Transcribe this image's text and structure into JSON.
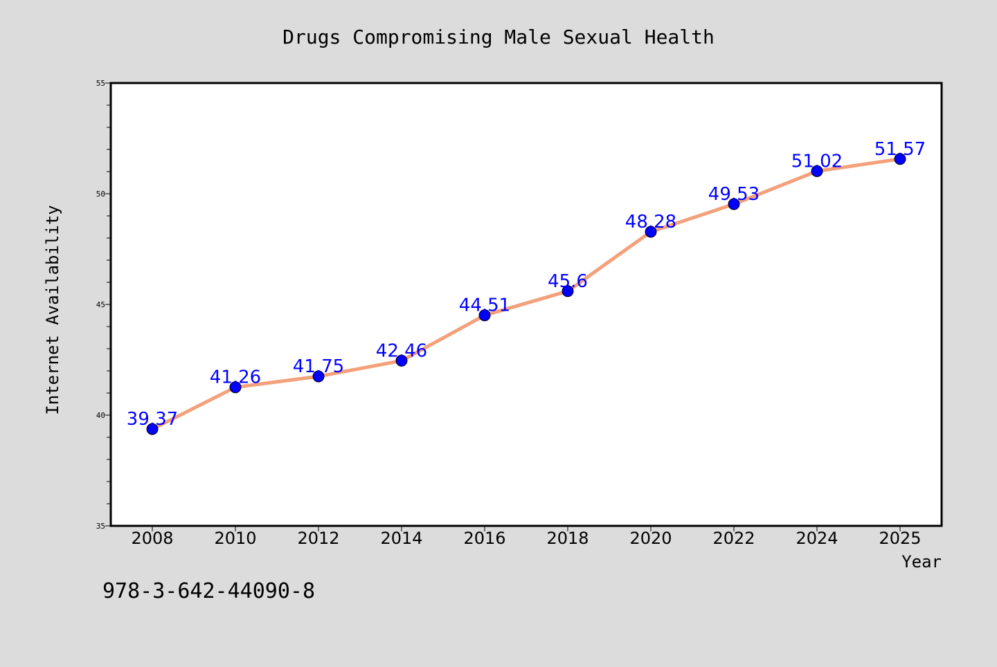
{
  "footer_code": "978-3-642-44090-8",
  "colors": {
    "background": "#dcdcdc",
    "plot_background": "#ffffff",
    "line": "#f4a07a",
    "marker": "#0000ff",
    "data_label": "#0000ff",
    "text": "#000000"
  },
  "chart_data": {
    "type": "line",
    "title": "Drugs Compromising Male Sexual Health",
    "xlabel": "Year",
    "ylabel": "Internet Availability",
    "x": [
      "2008",
      "2010",
      "2012",
      "2014",
      "2016",
      "2018",
      "2020",
      "2022",
      "2024",
      "2025"
    ],
    "series": [
      {
        "values": [
          39.37,
          41.26,
          41.75,
          42.46,
          44.51,
          45.6,
          48.28,
          49.53,
          51.02,
          51.57
        ],
        "labels": [
          "39.37",
          "41.26",
          "41.75",
          "42.46",
          "44.51",
          "45.6",
          "48.28",
          "49.53",
          "51.02",
          "51.57"
        ]
      }
    ],
    "ylim": [
      35,
      55
    ],
    "yticks": [
      "35",
      "40",
      "45",
      "50",
      "55"
    ],
    "grid": false,
    "legend": "none"
  }
}
